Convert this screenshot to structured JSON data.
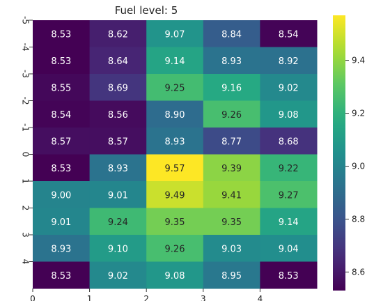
{
  "chart_data": {
    "type": "heatmap",
    "title": "Fuel level: 5",
    "xlabel": "",
    "ylabel": "",
    "x_tick_labels": [
      "0",
      "1",
      "2",
      "3",
      "4"
    ],
    "y_tick_labels": [
      "-5",
      "-4",
      "-3",
      "-2",
      "-1",
      "0",
      "1",
      "2",
      "3",
      "4"
    ],
    "values": [
      [
        8.53,
        8.62,
        9.07,
        8.84,
        8.54
      ],
      [
        8.53,
        8.64,
        9.14,
        8.93,
        8.92
      ],
      [
        8.55,
        8.69,
        9.25,
        9.16,
        9.02
      ],
      [
        8.54,
        8.56,
        8.9,
        9.26,
        9.08
      ],
      [
        8.57,
        8.57,
        8.93,
        8.77,
        8.68
      ],
      [
        8.53,
        8.93,
        9.57,
        9.39,
        9.22
      ],
      [
        9.0,
        9.01,
        9.49,
        9.41,
        9.27
      ],
      [
        9.01,
        9.24,
        9.35,
        9.35,
        9.14
      ],
      [
        8.93,
        9.1,
        9.26,
        9.03,
        9.04
      ],
      [
        8.53,
        9.02,
        9.08,
        8.95,
        8.53
      ]
    ],
    "colormap": "viridis",
    "color_range": [
      8.53,
      9.57
    ],
    "colorbar_ticks": [
      "8.6",
      "8.8",
      "9.0",
      "9.2",
      "9.4"
    ],
    "annotations": true,
    "grid": false
  }
}
